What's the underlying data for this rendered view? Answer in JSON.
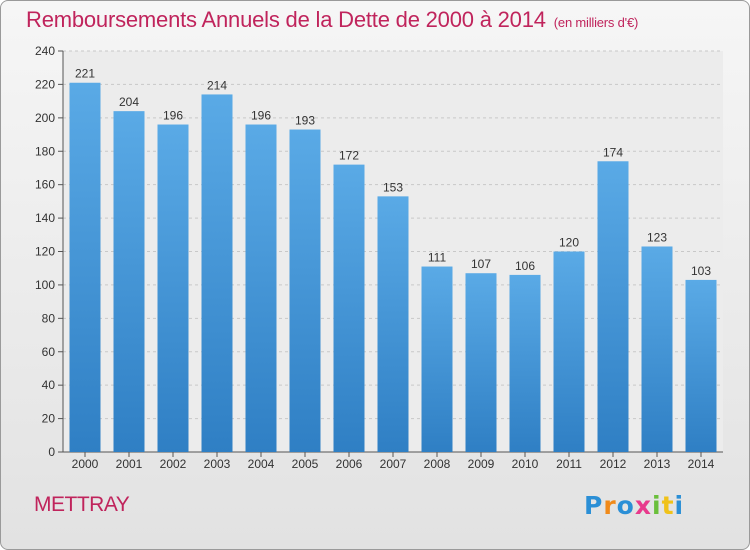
{
  "title": "Remboursements Annuels de la Dette de 2000 à 2014",
  "title_unit": "(en milliers d'€)",
  "city": "METTRAY",
  "logo": {
    "letters": [
      "P",
      "r",
      "o",
      "x",
      "i",
      "t",
      "i"
    ],
    "colors": [
      "#2b8fd6",
      "#f08a1a",
      "#2b8fd6",
      "#e83a8c",
      "#6abf3b",
      "#f0c21a",
      "#2b8fd6"
    ]
  },
  "colors": {
    "bar_top": "#5aaae6",
    "bar_bottom": "#2f7fc4",
    "title": "#c0245c"
  },
  "chart_data": {
    "type": "bar",
    "title": "Remboursements Annuels de la Dette de 2000 à 2014",
    "xlabel": "",
    "ylabel": "",
    "categories": [
      "2000",
      "2001",
      "2002",
      "2003",
      "2004",
      "2005",
      "2006",
      "2007",
      "2008",
      "2009",
      "2010",
      "2011",
      "2012",
      "2013",
      "2014"
    ],
    "values": [
      221,
      204,
      196,
      214,
      196,
      193,
      172,
      153,
      111,
      107,
      106,
      120,
      174,
      123,
      103
    ],
    "ylim": [
      0,
      240
    ],
    "yticks": [
      0,
      20,
      40,
      60,
      80,
      100,
      120,
      140,
      160,
      180,
      200,
      220,
      240
    ],
    "grid": true
  }
}
